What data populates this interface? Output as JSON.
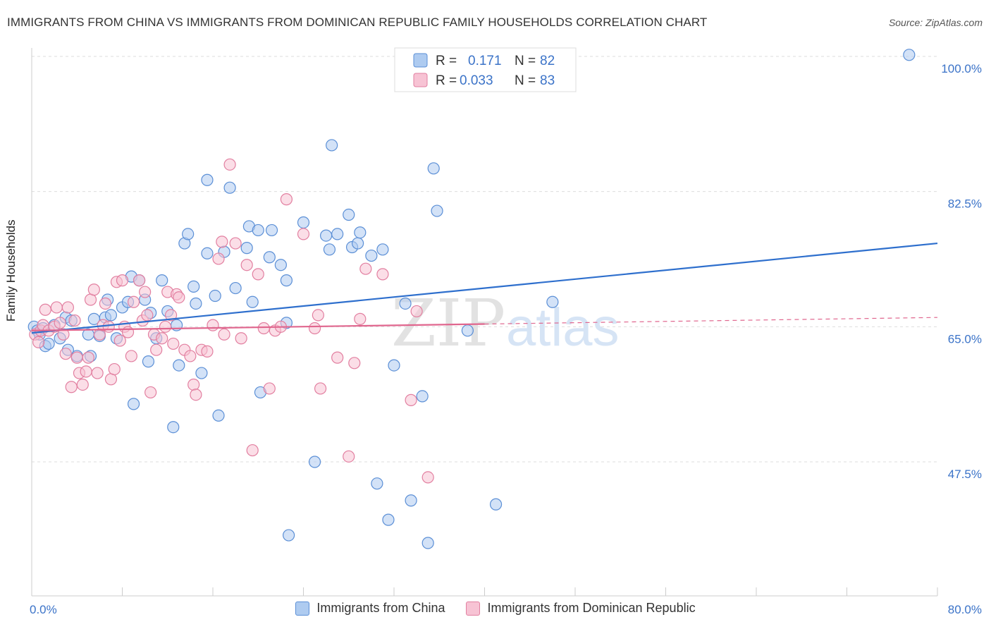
{
  "title": "IMMIGRANTS FROM CHINA VS IMMIGRANTS FROM DOMINICAN REPUBLIC FAMILY HOUSEHOLDS CORRELATION CHART",
  "source": "Source: ZipAtlas.com",
  "watermark": {
    "zip": "ZIP",
    "atlas": "atlas"
  },
  "colors": {
    "blue_fill": "#aecbf0",
    "blue_stroke": "#5b8fd6",
    "blue_line": "#2e6fcd",
    "pink_fill": "#f7c3d4",
    "pink_stroke": "#e27fa0",
    "pink_line": "#e0668e",
    "axis_text": "#3b73c8",
    "grid": "#dddddd"
  },
  "legend": {
    "rows": [
      {
        "r_label": "R =",
        "r_value": "0.171",
        "n_label": "N =",
        "n_value": "82"
      },
      {
        "r_label": "R =",
        "r_value": "0.033",
        "n_label": "N =",
        "n_value": "83"
      }
    ]
  },
  "chart_data": {
    "type": "scatter",
    "xlabel": "",
    "ylabel": "Family Households",
    "xlim": [
      0,
      80
    ],
    "ylim": [
      32,
      103
    ],
    "x_tick_labels": [
      "0.0%",
      "80.0%"
    ],
    "y_ticks": [
      47.5,
      65.0,
      82.5,
      100.0
    ],
    "y_tick_labels": [
      "47.5%",
      "65.0%",
      "82.5%",
      "100.0%"
    ],
    "grid": true,
    "series": [
      {
        "name": "Immigrants from China",
        "color": "blue",
        "trend": {
          "x": [
            0,
            80
          ],
          "y": [
            64.2,
            75.8
          ]
        },
        "points": [
          [
            0.2,
            65.0
          ],
          [
            0.5,
            64.5
          ],
          [
            0.7,
            64.0
          ],
          [
            1.0,
            64.8
          ],
          [
            1.2,
            62.5
          ],
          [
            1.5,
            62.8
          ],
          [
            2.0,
            65.2
          ],
          [
            2.5,
            63.5
          ],
          [
            3.0,
            66.2
          ],
          [
            3.2,
            62.0
          ],
          [
            3.5,
            65.8
          ],
          [
            4.0,
            61.2
          ],
          [
            5.0,
            64.0
          ],
          [
            5.2,
            61.2
          ],
          [
            5.5,
            66.0
          ],
          [
            6.0,
            63.8
          ],
          [
            6.5,
            66.2
          ],
          [
            6.7,
            68.5
          ],
          [
            7.0,
            66.5
          ],
          [
            7.5,
            63.5
          ],
          [
            8.0,
            67.5
          ],
          [
            8.5,
            68.2
          ],
          [
            8.8,
            71.5
          ],
          [
            9.0,
            55.0
          ],
          [
            9.5,
            71.0
          ],
          [
            10.0,
            68.5
          ],
          [
            10.3,
            60.5
          ],
          [
            10.5,
            66.8
          ],
          [
            11.0,
            63.5
          ],
          [
            11.5,
            71.0
          ],
          [
            12.0,
            67.0
          ],
          [
            12.5,
            52.0
          ],
          [
            12.8,
            65.2
          ],
          [
            13.0,
            60.0
          ],
          [
            13.5,
            75.8
          ],
          [
            13.8,
            77.0
          ],
          [
            14.3,
            70.2
          ],
          [
            14.5,
            68.0
          ],
          [
            15.0,
            59.0
          ],
          [
            15.5,
            74.5
          ],
          [
            15.5,
            84.0
          ],
          [
            16.2,
            69.0
          ],
          [
            16.5,
            53.5
          ],
          [
            17.0,
            74.7
          ],
          [
            17.5,
            83.0
          ],
          [
            18.0,
            70.0
          ],
          [
            19.0,
            75.2
          ],
          [
            19.2,
            78.0
          ],
          [
            19.5,
            68.2
          ],
          [
            20.0,
            77.5
          ],
          [
            20.2,
            56.5
          ],
          [
            21.0,
            74.0
          ],
          [
            21.2,
            77.5
          ],
          [
            22.0,
            73.0
          ],
          [
            22.5,
            65.5
          ],
          [
            22.5,
            71.0
          ],
          [
            22.7,
            38.0
          ],
          [
            24.0,
            78.5
          ],
          [
            25.0,
            47.5
          ],
          [
            26.0,
            76.8
          ],
          [
            26.3,
            75.0
          ],
          [
            26.5,
            88.5
          ],
          [
            27.0,
            77.0
          ],
          [
            28.0,
            79.5
          ],
          [
            28.3,
            75.3
          ],
          [
            28.8,
            75.8
          ],
          [
            29.0,
            77.2
          ],
          [
            30.0,
            74.2
          ],
          [
            30.5,
            44.7
          ],
          [
            31.0,
            75.0
          ],
          [
            31.5,
            40.0
          ],
          [
            32.0,
            60.0
          ],
          [
            33.0,
            68.0
          ],
          [
            33.5,
            42.5
          ],
          [
            34.5,
            56.0
          ],
          [
            35.0,
            37.0
          ],
          [
            35.5,
            85.5
          ],
          [
            35.8,
            80.0
          ],
          [
            38.5,
            64.5
          ],
          [
            41.0,
            42.0
          ],
          [
            46.0,
            68.2
          ],
          [
            77.5,
            100.2
          ]
        ]
      },
      {
        "name": "Immigrants from Dominican Republic",
        "color": "pink",
        "trend": {
          "x": [
            0,
            80
          ],
          "y": [
            64.5,
            66.2
          ],
          "solid_until": 40
        },
        "points": [
          [
            0.3,
            64.0
          ],
          [
            0.6,
            63.0
          ],
          [
            0.8,
            64.5
          ],
          [
            1.0,
            65.2
          ],
          [
            1.2,
            67.2
          ],
          [
            1.5,
            64.5
          ],
          [
            2.0,
            65.0
          ],
          [
            2.2,
            67.5
          ],
          [
            2.5,
            65.5
          ],
          [
            2.8,
            64.0
          ],
          [
            3.0,
            61.5
          ],
          [
            3.2,
            67.5
          ],
          [
            3.5,
            57.2
          ],
          [
            3.8,
            65.8
          ],
          [
            4.0,
            61.0
          ],
          [
            4.2,
            59.0
          ],
          [
            4.5,
            57.5
          ],
          [
            4.8,
            59.2
          ],
          [
            5.0,
            61.0
          ],
          [
            5.2,
            68.5
          ],
          [
            5.5,
            69.8
          ],
          [
            5.8,
            59.0
          ],
          [
            6.0,
            64.0
          ],
          [
            6.3,
            65.2
          ],
          [
            6.5,
            68.0
          ],
          [
            6.8,
            65.0
          ],
          [
            7.0,
            58.2
          ],
          [
            7.3,
            59.5
          ],
          [
            7.5,
            70.8
          ],
          [
            7.8,
            63.2
          ],
          [
            8.0,
            71.0
          ],
          [
            8.2,
            65.0
          ],
          [
            8.5,
            64.3
          ],
          [
            8.8,
            61.2
          ],
          [
            9.0,
            68.2
          ],
          [
            9.5,
            71.0
          ],
          [
            9.8,
            65.8
          ],
          [
            10.0,
            69.5
          ],
          [
            10.2,
            66.5
          ],
          [
            10.5,
            56.5
          ],
          [
            10.8,
            64.0
          ],
          [
            11.0,
            62.0
          ],
          [
            11.5,
            63.5
          ],
          [
            11.8,
            65.0
          ],
          [
            12.0,
            69.5
          ],
          [
            12.3,
            66.5
          ],
          [
            12.5,
            62.8
          ],
          [
            12.8,
            69.2
          ],
          [
            13.0,
            68.8
          ],
          [
            13.5,
            62.0
          ],
          [
            14.0,
            61.2
          ],
          [
            14.3,
            57.5
          ],
          [
            14.5,
            56.2
          ],
          [
            15.0,
            62.0
          ],
          [
            15.5,
            61.8
          ],
          [
            16.0,
            65.2
          ],
          [
            16.5,
            73.8
          ],
          [
            16.8,
            76.0
          ],
          [
            17.0,
            64.0
          ],
          [
            17.5,
            86.0
          ],
          [
            18.0,
            75.8
          ],
          [
            18.5,
            63.5
          ],
          [
            19.0,
            73.0
          ],
          [
            19.5,
            49.0
          ],
          [
            20.0,
            71.8
          ],
          [
            20.5,
            64.8
          ],
          [
            21.0,
            57.0
          ],
          [
            21.5,
            64.5
          ],
          [
            22.0,
            65.0
          ],
          [
            22.5,
            81.5
          ],
          [
            24.0,
            77.0
          ],
          [
            25.0,
            64.8
          ],
          [
            25.3,
            66.5
          ],
          [
            25.5,
            57.0
          ],
          [
            27.0,
            61.0
          ],
          [
            28.0,
            48.2
          ],
          [
            28.5,
            60.3
          ],
          [
            29.0,
            66.0
          ],
          [
            29.5,
            72.5
          ],
          [
            31.0,
            71.8
          ],
          [
            33.5,
            55.5
          ],
          [
            34.0,
            67.0
          ],
          [
            35.0,
            45.5
          ]
        ]
      }
    ]
  },
  "bottom_legend": [
    "Immigrants from China",
    "Immigrants from Dominican Republic"
  ]
}
